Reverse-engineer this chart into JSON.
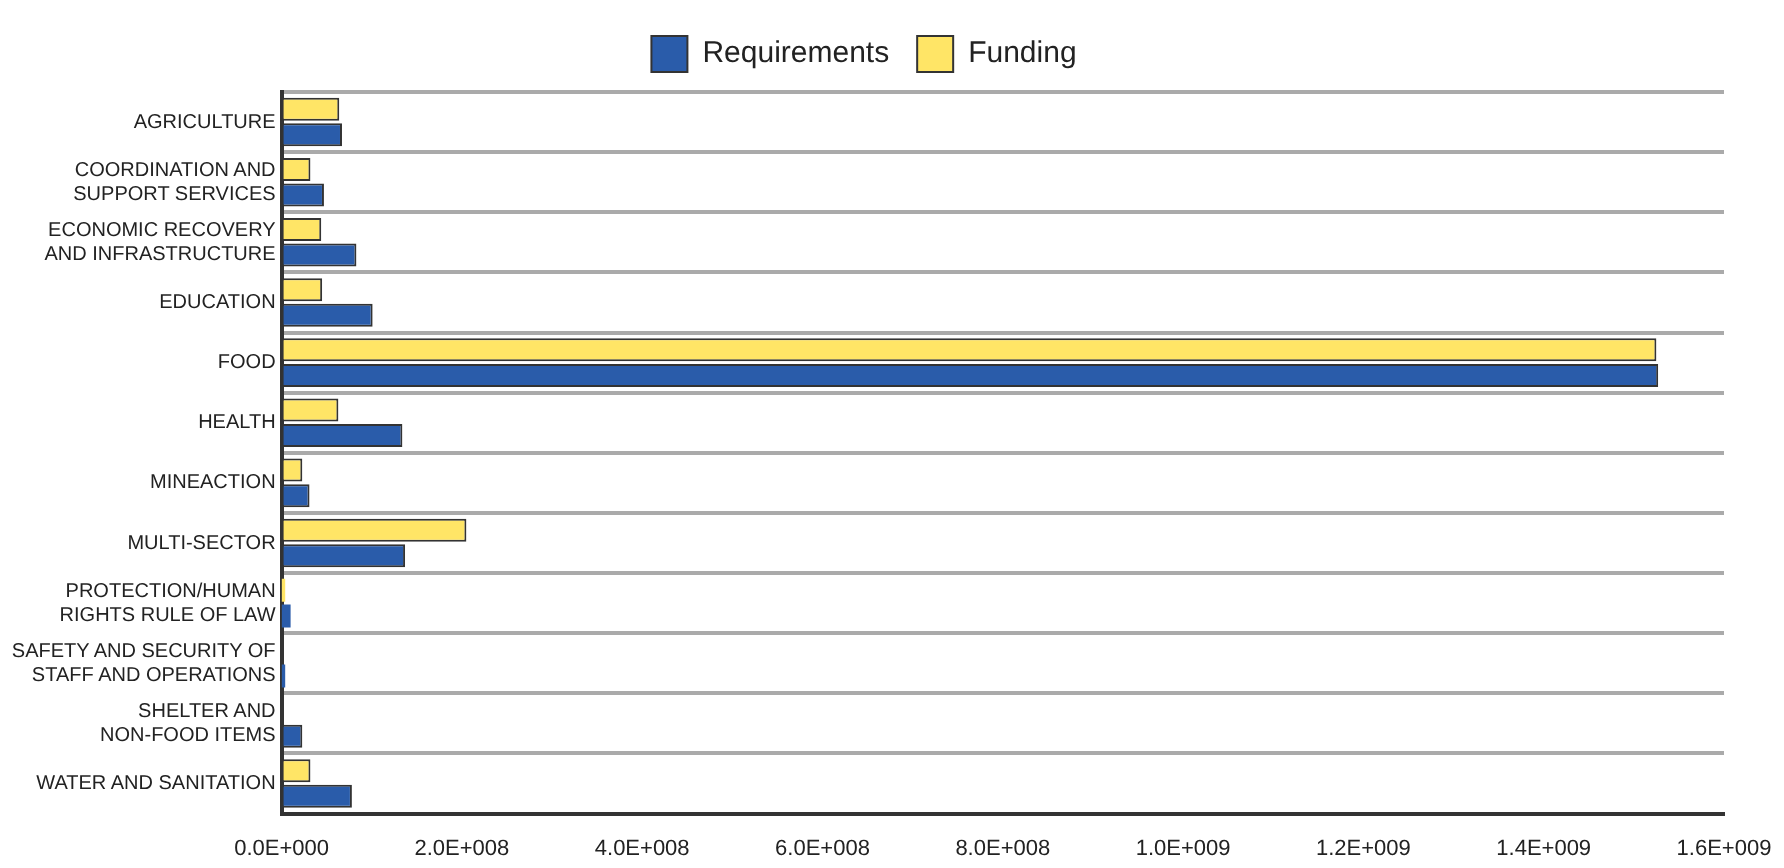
{
  "chart_data": {
    "type": "bar",
    "orientation": "horizontal",
    "categories": [
      "AGRICULTURE",
      "COORDINATION AND\nSUPPORT SERVICES",
      "ECONOMIC RECOVERY\nAND INFRASTRUCTURE",
      "EDUCATION",
      "FOOD",
      "HEALTH",
      "MINEACTION",
      "MULTI-SECTOR",
      "PROTECTION/HUMAN\nRIGHTS RULE OF LAW",
      "SAFETY AND SECURITY OF\nSTAFF AND OPERATIONS",
      "SHELTER AND\nNON-FOOD ITEMS",
      "WATER AND SANITATION"
    ],
    "series": [
      {
        "name": "Requirements",
        "color": "#2a5caa",
        "values": [
          67000000,
          47000000,
          83000000,
          101000000,
          1527000000,
          134000000,
          31000000,
          137000000,
          10000000,
          4000000,
          23000000,
          78000000
        ]
      },
      {
        "name": "Funding",
        "color": "#ffe566",
        "values": [
          64000000,
          32000000,
          44000000,
          45000000,
          1525000000,
          63000000,
          23000000,
          205000000,
          4000000,
          null,
          null,
          32000000
        ]
      }
    ],
    "xlim": [
      0,
      1600000000
    ],
    "xticks": [
      {
        "value": 0,
        "label": "0.0E+000"
      },
      {
        "value": 200000000,
        "label": "2.0E+008"
      },
      {
        "value": 400000000,
        "label": "4.0E+008"
      },
      {
        "value": 600000000,
        "label": "6.0E+008"
      },
      {
        "value": 800000000,
        "label": "8.0E+008"
      },
      {
        "value": 1000000000,
        "label": "1.0E+009"
      },
      {
        "value": 1200000000,
        "label": "1.2E+009"
      },
      {
        "value": 1400000000,
        "label": "1.4E+009"
      },
      {
        "value": 1600000000,
        "label": "1.6E+009"
      }
    ],
    "grid": "y",
    "legend": "top"
  }
}
